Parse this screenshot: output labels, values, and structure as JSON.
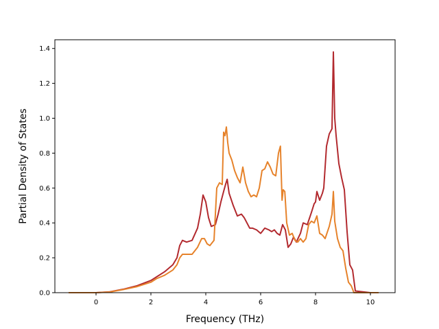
{
  "chart_data": {
    "type": "line",
    "title": "",
    "xlabel": "Frequency (THz)",
    "ylabel": "Partial Density of States",
    "xlim": [
      -1.5,
      10.9
    ],
    "ylim": [
      0.0,
      1.45
    ],
    "xticks": [
      0,
      2,
      4,
      6,
      8,
      10
    ],
    "yticks": [
      0.0,
      0.2,
      0.4,
      0.6,
      0.8,
      1.0,
      1.2,
      1.4
    ],
    "xtick_labels": [
      "0",
      "2",
      "4",
      "6",
      "8",
      "10"
    ],
    "ytick_labels": [
      "0.0",
      "0.2",
      "0.4",
      "0.6",
      "0.8",
      "1.0",
      "1.2",
      "1.4"
    ],
    "grid": false,
    "legend": "none",
    "series": [
      {
        "color": "#b2292e",
        "x": [
          -1.0,
          0.0,
          0.5,
          1.0,
          1.5,
          2.0,
          2.2,
          2.5,
          2.8,
          2.95,
          3.05,
          3.15,
          3.3,
          3.5,
          3.7,
          3.8,
          3.9,
          4.0,
          4.1,
          4.2,
          4.35,
          4.45,
          4.55,
          4.65,
          4.72,
          4.78,
          4.85,
          5.0,
          5.15,
          5.3,
          5.4,
          5.5,
          5.6,
          5.7,
          5.85,
          6.0,
          6.15,
          6.3,
          6.4,
          6.5,
          6.6,
          6.7,
          6.8,
          6.9,
          7.0,
          7.1,
          7.2,
          7.3,
          7.45,
          7.55,
          7.7,
          7.85,
          7.95,
          8.0,
          8.05,
          8.15,
          8.25,
          8.3,
          8.4,
          8.5,
          8.6,
          8.65,
          8.7,
          8.75,
          8.85,
          8.95,
          9.05,
          9.15,
          9.25,
          9.35,
          9.45,
          10.0,
          10.3
        ],
        "y": [
          0.0,
          0.0,
          0.005,
          0.02,
          0.04,
          0.07,
          0.09,
          0.12,
          0.16,
          0.2,
          0.27,
          0.3,
          0.29,
          0.3,
          0.37,
          0.45,
          0.56,
          0.52,
          0.43,
          0.38,
          0.39,
          0.45,
          0.52,
          0.58,
          0.62,
          0.65,
          0.57,
          0.5,
          0.44,
          0.45,
          0.43,
          0.4,
          0.37,
          0.37,
          0.36,
          0.34,
          0.37,
          0.36,
          0.35,
          0.36,
          0.34,
          0.33,
          0.39,
          0.36,
          0.26,
          0.28,
          0.32,
          0.29,
          0.34,
          0.4,
          0.39,
          0.46,
          0.51,
          0.52,
          0.58,
          0.53,
          0.57,
          0.6,
          0.84,
          0.91,
          0.94,
          1.38,
          1.0,
          0.9,
          0.74,
          0.66,
          0.59,
          0.35,
          0.16,
          0.13,
          0.01,
          0.0,
          0.0
        ]
      },
      {
        "color": "#e6822a",
        "x": [
          -1.0,
          0.0,
          0.5,
          1.0,
          1.5,
          2.0,
          2.2,
          2.5,
          2.8,
          2.95,
          3.05,
          3.15,
          3.3,
          3.5,
          3.7,
          3.85,
          3.95,
          4.05,
          4.15,
          4.3,
          4.4,
          4.5,
          4.6,
          4.65,
          4.7,
          4.75,
          4.8,
          4.85,
          4.95,
          5.05,
          5.15,
          5.25,
          5.35,
          5.45,
          5.55,
          5.65,
          5.75,
          5.85,
          5.95,
          6.05,
          6.15,
          6.25,
          6.35,
          6.45,
          6.55,
          6.65,
          6.72,
          6.78,
          6.82,
          6.88,
          6.95,
          7.05,
          7.15,
          7.25,
          7.35,
          7.45,
          7.55,
          7.65,
          7.75,
          7.85,
          7.95,
          8.05,
          8.15,
          8.25,
          8.35,
          8.5,
          8.6,
          8.65,
          8.7,
          8.8,
          8.9,
          9.0,
          9.1,
          9.2,
          9.3,
          9.4,
          10.0,
          10.3
        ],
        "y": [
          0.0,
          0.0,
          0.004,
          0.018,
          0.035,
          0.06,
          0.08,
          0.1,
          0.13,
          0.16,
          0.2,
          0.22,
          0.22,
          0.22,
          0.26,
          0.31,
          0.31,
          0.28,
          0.27,
          0.3,
          0.6,
          0.63,
          0.62,
          0.92,
          0.9,
          0.95,
          0.86,
          0.8,
          0.76,
          0.7,
          0.66,
          0.63,
          0.72,
          0.63,
          0.58,
          0.55,
          0.56,
          0.55,
          0.6,
          0.7,
          0.71,
          0.75,
          0.72,
          0.68,
          0.67,
          0.8,
          0.84,
          0.53,
          0.59,
          0.58,
          0.4,
          0.33,
          0.34,
          0.3,
          0.29,
          0.31,
          0.29,
          0.31,
          0.39,
          0.41,
          0.4,
          0.44,
          0.34,
          0.33,
          0.31,
          0.38,
          0.45,
          0.58,
          0.41,
          0.31,
          0.26,
          0.24,
          0.14,
          0.06,
          0.04,
          0.0,
          0.0,
          0.0
        ]
      }
    ]
  }
}
